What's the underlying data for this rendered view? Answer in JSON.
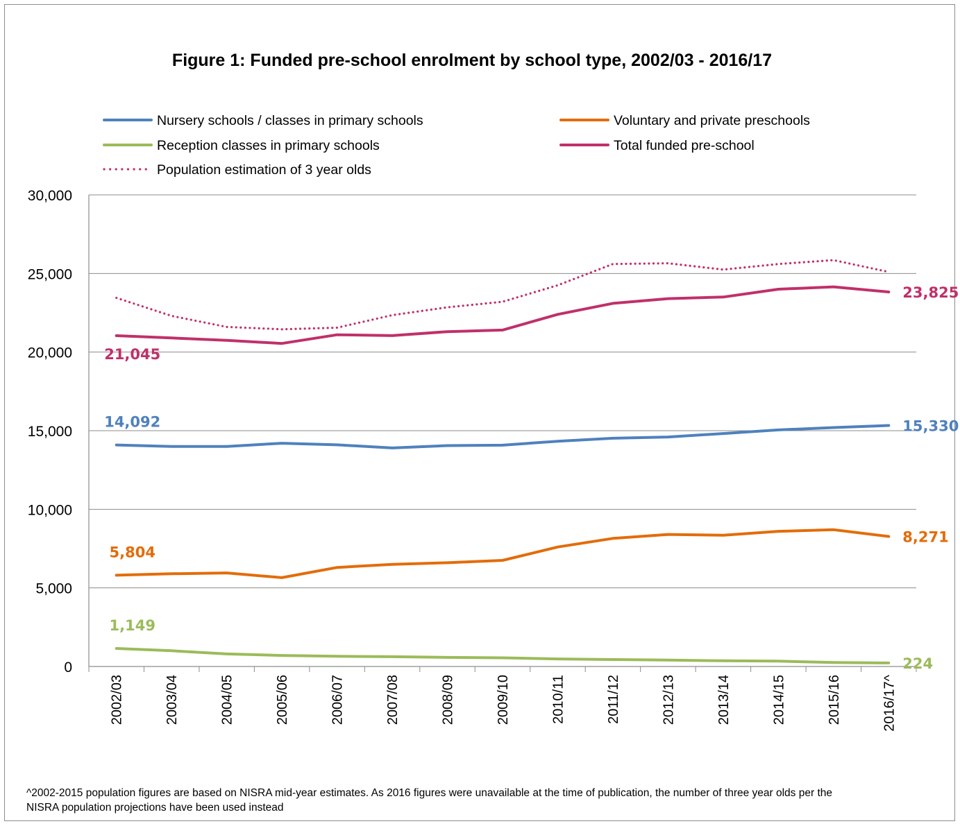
{
  "chart_data": {
    "type": "line",
    "title": "Figure 1: Funded pre-school enrolment by school type, 2002/03 - 2016/17",
    "xlabel": "",
    "ylabel": "",
    "ylim": [
      0,
      30000
    ],
    "yticks": [
      "0",
      "5,000",
      "10,000",
      "15,000",
      "20,000",
      "25,000",
      "30,000"
    ],
    "grid": true,
    "legend_position": "top",
    "categories": [
      "2002/03",
      "2003/04",
      "2004/05",
      "2005/06",
      "2006/07",
      "2007/08",
      "2008/09",
      "2009/10",
      "2010/11",
      "2011/12",
      "2012/13",
      "2013/14",
      "2014/15",
      "2015/16",
      "2016/17^"
    ],
    "series": [
      {
        "name": "Nursery schools / classes in primary schools",
        "color": "#4f81bd",
        "style": "solid",
        "values": [
          14092,
          14000,
          14000,
          14200,
          14100,
          13900,
          14050,
          14080,
          14330,
          14520,
          14600,
          14820,
          15050,
          15200,
          15330
        ],
        "labels": [
          {
            "index": 0,
            "text": "14,092",
            "pos": "above"
          },
          {
            "index": 14,
            "text": "15,330",
            "pos": "right"
          }
        ]
      },
      {
        "name": "Voluntary and private preschools",
        "color": "#e36c09",
        "style": "solid",
        "values": [
          5804,
          5900,
          5950,
          5650,
          6300,
          6500,
          6600,
          6750,
          7600,
          8150,
          8400,
          8350,
          8600,
          8700,
          8271
        ],
        "labels": [
          {
            "index": 0,
            "text": "5,804",
            "pos": "above"
          },
          {
            "index": 14,
            "text": "8,271",
            "pos": "right"
          }
        ]
      },
      {
        "name": "Reception classes in primary schools",
        "color": "#9bbb59",
        "style": "solid",
        "values": [
          1149,
          1000,
          800,
          700,
          650,
          620,
          580,
          550,
          480,
          440,
          410,
          360,
          340,
          250,
          224
        ],
        "labels": [
          {
            "index": 0,
            "text": "1,149",
            "pos": "above"
          },
          {
            "index": 14,
            "text": "224",
            "pos": "right"
          }
        ]
      },
      {
        "name": "Total funded pre-school",
        "color": "#c0306a",
        "style": "solid",
        "values": [
          21045,
          20900,
          20750,
          20550,
          21100,
          21050,
          21300,
          21400,
          22400,
          23100,
          23400,
          23500,
          24000,
          24150,
          23825
        ],
        "labels": [
          {
            "index": 0,
            "text": "21,045",
            "pos": "below"
          },
          {
            "index": 14,
            "text": "23,825",
            "pos": "right"
          }
        ]
      },
      {
        "name": "Population estimation of 3 year olds",
        "color": "#c0306a",
        "style": "dotted",
        "values": [
          23450,
          22300,
          21600,
          21450,
          21550,
          22350,
          22850,
          23200,
          24250,
          25600,
          25650,
          25250,
          25600,
          25850,
          25100
        ],
        "labels": []
      }
    ],
    "footnote": "^2002-2015 population figures are  based on NISRA mid-year estimates.  As 2016 figures were unavailable at the time of publication, the number of three year olds per the NISRA population projections have been used instead"
  }
}
